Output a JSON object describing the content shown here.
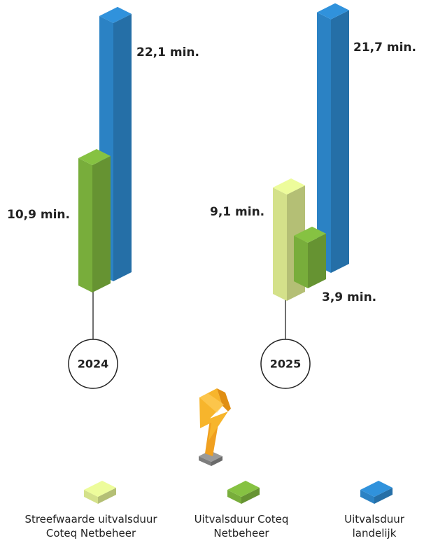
{
  "chart_data": {
    "type": "bar3d",
    "categories": [
      "2024",
      "2025"
    ],
    "series": [
      {
        "name": "Streefwaarde uitvalsduur Coteq Netbeheer",
        "color": "#d4e18a",
        "values": [
          null,
          9.1
        ],
        "value_labels": [
          null,
          "9,1 min."
        ]
      },
      {
        "name": "Uitvalsduur Coteq Netbeheer",
        "color": "#78ad3b",
        "values": [
          10.9,
          3.9
        ],
        "value_labels": [
          "10,9 min.",
          "3,9 min."
        ]
      },
      {
        "name": "Uitvalsduur landelijk",
        "color": "#2b82c4",
        "values": [
          22.1,
          21.7
        ],
        "value_labels": [
          "22,1 min.",
          "21,7 min."
        ]
      }
    ]
  }
}
